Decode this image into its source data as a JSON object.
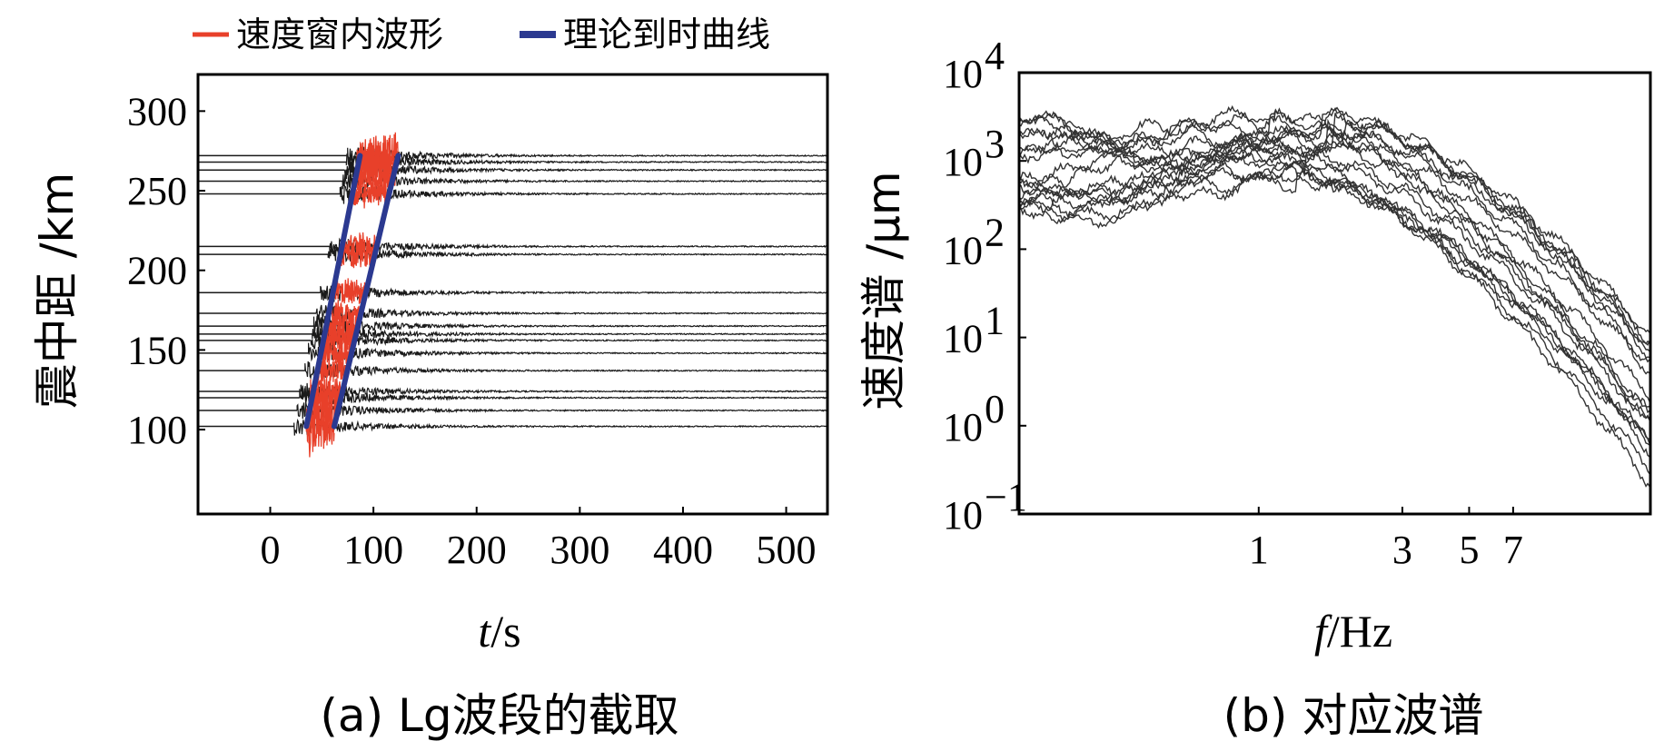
{
  "chart_data": [
    {
      "type": "line",
      "subtitle": "(a) Lg波段的截取",
      "xlabel_italic": "t",
      "xlabel_unit": "/s",
      "ylabel": "震中距 /km",
      "xlim": [
        -70,
        540
      ],
      "ylim": [
        47,
        323
      ],
      "x_ticks": [
        0,
        100,
        200,
        300,
        400,
        500
      ],
      "y_ticks": [
        100,
        150,
        200,
        250,
        300
      ],
      "legend_position": "top",
      "series": [
        {
          "name": "速度窗内波形",
          "color": "#e8402a"
        },
        {
          "name": "理论到时曲线",
          "color": "#2b3990"
        }
      ],
      "station_distances_km": [
        102,
        112,
        120,
        124,
        137,
        148,
        156,
        160,
        165,
        173,
        186,
        210,
        215,
        248,
        256,
        263,
        268,
        272
      ],
      "theory_lines": [
        {
          "x": [
            35,
            87
          ],
          "y": [
            102,
            272
          ]
        },
        {
          "x": [
            62,
            124
          ],
          "y": [
            102,
            272
          ]
        }
      ],
      "trace_color": "#1a1a1a"
    },
    {
      "type": "line",
      "subtitle": "(b) 对应波谱",
      "xlabel_italic": "f",
      "xlabel_unit": "/Hz",
      "ylabel": "速度谱 /μm",
      "xscale": "log",
      "yscale": "log",
      "xlim": [
        0.16,
        20
      ],
      "ylim": [
        0.1,
        10000
      ],
      "x_ticks": [
        1,
        3,
        5,
        7
      ],
      "y_ticks": [
        {
          "base": "10",
          "exp": "4"
        },
        {
          "base": "10",
          "exp": "3"
        },
        {
          "base": "10",
          "exp": "2"
        },
        {
          "base": "10",
          "exp": "1"
        },
        {
          "base": "10",
          "exp": "0"
        },
        {
          "base": "10",
          "exp": "−1"
        }
      ],
      "spectrum_count": 18,
      "line_color": "#333333"
    }
  ]
}
